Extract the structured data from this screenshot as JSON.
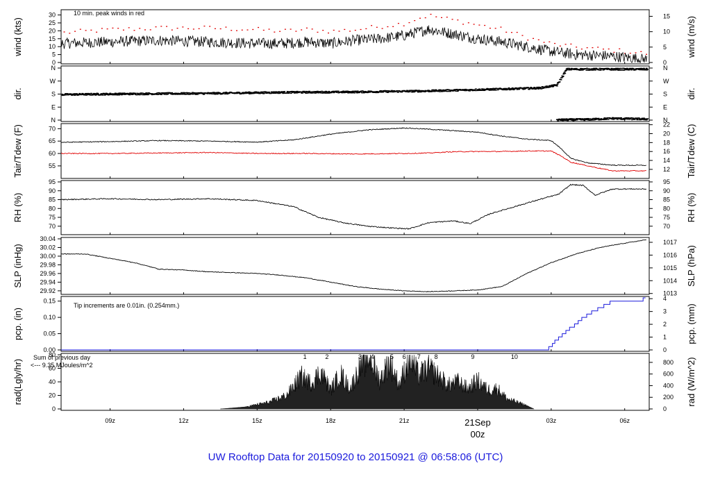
{
  "title": "UW Rooftop Data for 20150920  to  20150921 @ 06:58:06  (UTC)",
  "date_marker": {
    "day": "21Sep",
    "hour": "00z"
  },
  "colors": {
    "black": "#000000",
    "red": "#e00000",
    "blue": "#1a1adc",
    "purple": "#9a1ad0"
  },
  "chart_data": [
    {
      "type": "line",
      "panel": "wind",
      "ylabel_left": "wind (kts)",
      "ylabel_right": "wind (m/s)",
      "ylim": [
        0,
        32
      ],
      "yticks_left": [
        "0",
        "5",
        "10",
        "15",
        "20",
        "25",
        "30"
      ],
      "yticks_right": [
        "0",
        "5",
        "10",
        "15"
      ],
      "annotation": "10 min. peak winds in red",
      "series": [
        {
          "name": "10 min. peak winds",
          "color": "#e00000",
          "t": [
            7,
            9,
            11,
            13,
            15,
            16,
            17,
            18,
            19,
            20,
            21,
            21.5,
            22,
            23,
            24,
            25,
            26,
            27,
            28,
            29.5,
            30.8
          ],
          "values": [
            19,
            21,
            22,
            22,
            21,
            20,
            21,
            20,
            21,
            23,
            25,
            28,
            30,
            27,
            24,
            21,
            16,
            12,
            10,
            8,
            6
          ]
        },
        {
          "color": "#000000",
          "t": [
            7,
            9,
            11,
            13,
            15,
            16,
            17,
            18,
            19,
            20,
            21,
            21.5,
            22,
            23,
            24,
            25,
            26,
            27,
            28,
            29.5,
            30.8
          ],
          "values": [
            12,
            13,
            14,
            13,
            12,
            12,
            13,
            12,
            14,
            15,
            17,
            19,
            21,
            18,
            15,
            13,
            10,
            7,
            5,
            4,
            2
          ]
        }
      ]
    },
    {
      "type": "scatter",
      "panel": "dir",
      "ylabel_left": "dir.",
      "ylabel_right": "dir.",
      "ylim": [
        0,
        360
      ],
      "yticks": [
        "N",
        "E",
        "S",
        "W",
        "N"
      ],
      "series": [
        {
          "t": [
            7,
            10,
            13,
            16,
            19,
            22,
            25,
            26.5,
            27.2,
            27.6,
            29,
            30.9
          ],
          "values": [
            180,
            185,
            188,
            195,
            198,
            205,
            218,
            225,
            245,
            355,
            355,
            355
          ]
        },
        {
          "t": [
            27.2,
            28.5,
            29.5,
            30.9
          ],
          "values": [
            5,
            8,
            15,
            10
          ]
        }
      ]
    },
    {
      "type": "line",
      "panel": "temperature",
      "ylabel_left": "Tair/Tdew (F)",
      "ylabel_right": "Tair/Tdew (C)",
      "ylim": [
        50.5,
        71.5
      ],
      "yticks_left": [
        "55",
        "60",
        "65",
        "70"
      ],
      "yticks_right": [
        "12",
        "14",
        "16",
        "18",
        "20",
        "22"
      ],
      "series": [
        {
          "color": "#000000",
          "t": [
            7,
            9,
            11,
            13,
            15,
            16.5,
            18,
            19.5,
            21,
            22,
            23,
            24,
            25,
            26,
            27,
            27.4,
            27.8,
            28.5,
            29.5,
            30.9
          ],
          "values": [
            64.5,
            64.8,
            65.2,
            65,
            64.6,
            65.5,
            67.8,
            69.5,
            70.3,
            69.8,
            69.2,
            68.6,
            67,
            65.8,
            65.2,
            62,
            58,
            56.2,
            55.3,
            55.2
          ]
        },
        {
          "color": "#e00000",
          "t": [
            7,
            9,
            11,
            13,
            15,
            17,
            19,
            21,
            22,
            23,
            24,
            25,
            26,
            27,
            27.4,
            27.8,
            28.5,
            29.5,
            30.9
          ],
          "values": [
            60,
            60,
            60.2,
            60.4,
            60,
            60,
            59.8,
            60,
            60.2,
            60.7,
            60.8,
            60.8,
            61,
            61,
            59,
            56.5,
            55,
            53,
            53
          ]
        }
      ]
    },
    {
      "type": "line",
      "panel": "rh",
      "ylabel_left": "RH (%)",
      "ylabel_right": "RH (%)",
      "ylim": [
        66,
        95
      ],
      "yticks_left": [
        "70",
        "75",
        "80",
        "85",
        "90",
        "95"
      ],
      "yticks_right": [
        "70",
        "75",
        "80",
        "85",
        "90",
        "95"
      ],
      "series": [
        {
          "color": "#000000",
          "t": [
            7,
            9,
            11,
            13,
            15,
            16.5,
            17.5,
            18.5,
            19.5,
            20.5,
            21.2,
            22,
            23,
            23.7,
            24.5,
            25.5,
            26.5,
            27.3,
            27.8,
            28.3,
            28.8,
            29.5,
            30.9
          ],
          "values": [
            85,
            85.5,
            85,
            85.5,
            84.5,
            81,
            75,
            72,
            70,
            69,
            68.5,
            72,
            73,
            71.5,
            77,
            81,
            85,
            88,
            93.5,
            93,
            87.5,
            91,
            91
          ]
        }
      ]
    },
    {
      "type": "line",
      "panel": "slp",
      "ylabel_left": "SLP (inHg)",
      "ylabel_right": "SLP (hPa)",
      "ylim": [
        29.915,
        30.04
      ],
      "yticks_left": [
        "29.92",
        "29.94",
        "29.96",
        "29.98",
        "30.00",
        "30.02",
        "30.04"
      ],
      "yticks_right": [
        "1013",
        "1014",
        "1015",
        "1016",
        "1017"
      ],
      "series": [
        {
          "color": "#000000",
          "t": [
            7,
            8,
            9,
            10,
            11,
            12,
            13,
            14,
            15,
            16,
            17,
            18,
            19,
            20,
            21,
            22,
            23,
            24,
            25,
            26,
            27,
            28,
            29,
            30,
            30.9
          ],
          "values": [
            30.005,
            30.005,
            29.995,
            29.985,
            29.97,
            29.968,
            29.964,
            29.962,
            29.96,
            29.956,
            29.95,
            29.94,
            29.93,
            29.924,
            29.92,
            29.918,
            29.92,
            29.922,
            29.93,
            29.96,
            29.985,
            30.005,
            30.02,
            30.03,
            30.038
          ]
        }
      ]
    },
    {
      "type": "line",
      "panel": "pcp",
      "ylabel_left": "pcp. (in)",
      "ylabel_right": "pcp. (mm)",
      "ylim": [
        0,
        0.16
      ],
      "yticks_left": [
        "0.00",
        "0.05",
        "0.10",
        "0.15"
      ],
      "yticks_right": [
        "0",
        "1",
        "2",
        "3",
        "4"
      ],
      "annotation": "Tip increments are 0.01in. (0.254mm.)",
      "series": [
        {
          "color": "#1a1adc",
          "t": [
            7,
            26.8,
            27.5,
            28,
            28.5,
            29,
            29.5,
            30.6,
            30.9
          ],
          "values": [
            0,
            0,
            0.05,
            0.08,
            0.11,
            0.13,
            0.15,
            0.15,
            0.16
          ]
        }
      ]
    },
    {
      "type": "area",
      "panel": "rad",
      "ylabel_left": "rad(Lgly/hr)",
      "ylabel_right": "rad (W/m^2)",
      "ylim": [
        0,
        80
      ],
      "yticks_left": [
        "0",
        "20",
        "40",
        "60",
        "80"
      ],
      "yticks_right": [
        "0",
        "200",
        "400",
        "600",
        "800"
      ],
      "annotation": "Sum of previous day <--- 9.35 MJoules/m^2",
      "marker_labels": [
        "1",
        "2",
        "3",
        "4",
        "5",
        "6",
        "7",
        "8",
        "9",
        "10"
      ],
      "marker_t": [
        16.95,
        17.85,
        19.2,
        19.7,
        20.5,
        21,
        21.6,
        22.3,
        23.8,
        25.5
      ],
      "series": [
        {
          "color": "#000000",
          "t": [
            13.5,
            14.5,
            15.5,
            16.2,
            16.8,
            17.2,
            17.6,
            18,
            18.4,
            18.8,
            19.2,
            19.6,
            20,
            20.4,
            20.8,
            21.2,
            21.6,
            22,
            22.4,
            22.8,
            23.2,
            23.6,
            24,
            24.4,
            24.8,
            25.2,
            25.6,
            26,
            26.3
          ],
          "values": [
            0,
            3,
            10,
            20,
            48,
            38,
            55,
            28,
            52,
            30,
            62,
            78,
            42,
            70,
            35,
            75,
            50,
            60,
            48,
            35,
            40,
            30,
            42,
            28,
            30,
            15,
            10,
            5,
            0
          ]
        }
      ]
    }
  ],
  "x_axis": {
    "ticks": [
      "09z",
      "12z",
      "15z",
      "18z",
      "21z",
      "00z",
      "03z",
      "06z"
    ],
    "tick_t": [
      9,
      12,
      15,
      18,
      21,
      24,
      27,
      30
    ],
    "xlim": [
      7,
      31
    ]
  }
}
